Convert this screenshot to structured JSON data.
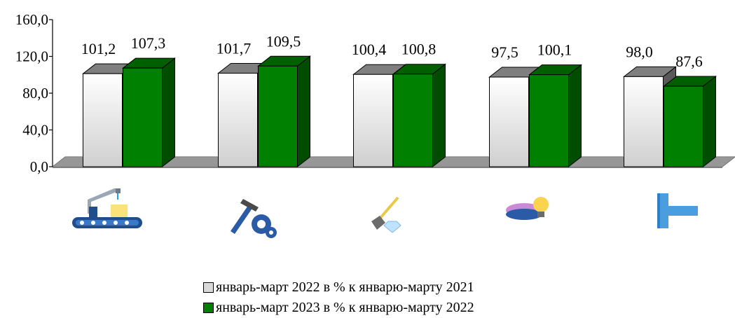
{
  "chart_data": {
    "type": "bar",
    "categories": [
      "manufacturing-icon",
      "construction-tools-icon",
      "mining-icon",
      "gas-electricity-icon",
      "water-supply-icon"
    ],
    "series": [
      {
        "name": "январь-март 2022 в % к январю-марту 2021",
        "values": [
          101.2,
          101.7,
          100.4,
          97.5,
          98.0
        ],
        "labels": [
          "101,2",
          "101,7",
          "100,4",
          "97,5",
          "98,0"
        ],
        "color": "#d9d9d9"
      },
      {
        "name": "январь-март 2023 в % к январю-марту 2022",
        "values": [
          107.3,
          109.5,
          100.8,
          100.1,
          87.6
        ],
        "labels": [
          "107,3",
          "109,5",
          "100,8",
          "100,1",
          "87,6"
        ],
        "color": "#008000"
      }
    ],
    "yticks": [
      "0,0",
      "40,0",
      "80,0",
      "120,0",
      "160,0"
    ],
    "ylim": [
      0,
      160
    ],
    "grid": false,
    "legend_position": "bottom"
  },
  "legend": [
    {
      "label": "январь-март 2022 в % к январю-марту 2021",
      "color": "#d9d9d9"
    },
    {
      "label": "январь-март 2023 в % к январю-марту 2022",
      "color": "#008000"
    }
  ]
}
